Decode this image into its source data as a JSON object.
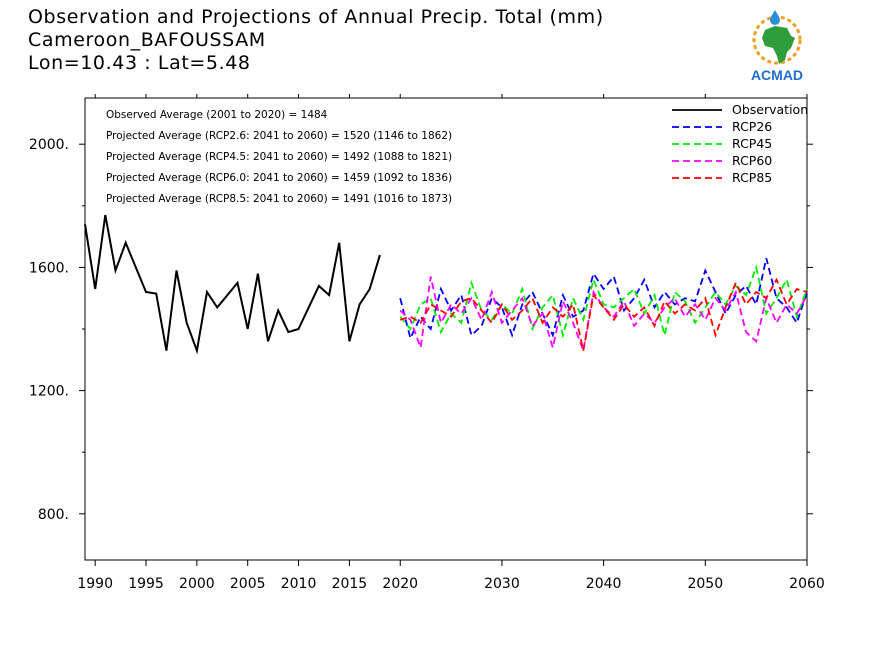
{
  "title": {
    "line1": "Observation and Projections of Annual Precip. Total (mm)",
    "line2": "Cameroon_BAFOUSSAM",
    "line3": "Lon=10.43 : Lat=5.48"
  },
  "logo": {
    "text": "ACMAD",
    "icon": "acmad-africa-logo",
    "colors": {
      "africa": "#2e9e3a",
      "ring": "#f0a020",
      "text": "#1f6fd0",
      "drop": "#2a8fd8"
    }
  },
  "annotations": [
    "Observed Average (2001 to 2020) = 1484",
    "Projected Average (RCP2.6: 2041 to 2060) = 1520 (1146 to 1862)",
    "Projected Average (RCP4.5: 2041 to 2060) = 1492 (1088 to 1821)",
    "Projected Average (RCP6.0: 2041 to 2060) = 1459 (1092 to 1836)",
    "Projected Average (RCP8.5: 2041 to 2060) = 1491 (1016 to 1873)"
  ],
  "chart_data": {
    "type": "line",
    "xlim": [
      1989,
      2060
    ],
    "ylim": [
      650,
      2150
    ],
    "yticks": [
      800,
      1200,
      1600,
      2000
    ],
    "ytick_labels": [
      "800.",
      "1200.",
      "1600.",
      "2000."
    ],
    "xticks": [
      1990,
      1995,
      2000,
      2005,
      2010,
      2015,
      2020,
      2030,
      2040,
      2050,
      2060
    ],
    "xtick_labels": [
      "1990",
      "1995",
      "2000",
      "2005",
      "2010",
      "2015",
      "2020",
      "2030",
      "2040",
      "2050",
      "2060"
    ],
    "legend_position": "top-right",
    "series": [
      {
        "name": "Observation",
        "color": "#000000",
        "dashed": false,
        "x": [
          1989,
          1990,
          1991,
          1992,
          1993,
          1994,
          1995,
          1996,
          1997,
          1998,
          1999,
          2000,
          2001,
          2002,
          2003,
          2004,
          2005,
          2006,
          2007,
          2008,
          2009,
          2010,
          2011,
          2012,
          2013,
          2014,
          2015,
          2016,
          2017,
          2018,
          2019,
          2020
        ],
        "values": [
          1740,
          1530,
          1770,
          1590,
          1680,
          1600,
          1520,
          1515,
          1330,
          1590,
          1420,
          1330,
          1520,
          1470,
          1510,
          1550,
          1400,
          1580,
          1360,
          1460,
          1390,
          1400,
          1470,
          1540,
          1510,
          1680,
          1360,
          1480,
          1530,
          1640,
          null,
          null
        ]
      },
      {
        "name": "RCP26",
        "color": "#0000ff",
        "dashed": true,
        "x": [
          2020,
          2021,
          2022,
          2023,
          2024,
          2025,
          2026,
          2027,
          2028,
          2029,
          2030,
          2031,
          2032,
          2033,
          2034,
          2035,
          2036,
          2037,
          2038,
          2039,
          2040,
          2041,
          2042,
          2043,
          2044,
          2045,
          2046,
          2047,
          2048,
          2049,
          2050,
          2051,
          2052,
          2053,
          2054,
          2055,
          2056,
          2057,
          2058,
          2059,
          2060
        ],
        "values": [
          1500,
          1370,
          1440,
          1400,
          1530,
          1460,
          1510,
          1380,
          1410,
          1500,
          1470,
          1380,
          1480,
          1520,
          1450,
          1380,
          1510,
          1440,
          1460,
          1580,
          1530,
          1570,
          1460,
          1500,
          1560,
          1470,
          1520,
          1480,
          1500,
          1490,
          1590,
          1520,
          1450,
          1510,
          1540,
          1480,
          1630,
          1500,
          1470,
          1420,
          1520
        ]
      },
      {
        "name": "RCP45",
        "color": "#00ee00",
        "dashed": true,
        "x": [
          2020,
          2021,
          2022,
          2023,
          2024,
          2025,
          2026,
          2027,
          2028,
          2029,
          2030,
          2031,
          2032,
          2033,
          2034,
          2035,
          2036,
          2037,
          2038,
          2039,
          2040,
          2041,
          2042,
          2043,
          2044,
          2045,
          2046,
          2047,
          2048,
          2049,
          2050,
          2051,
          2052,
          2053,
          2054,
          2055,
          2056,
          2057,
          2058,
          2059,
          2060
        ],
        "values": [
          1440,
          1400,
          1480,
          1500,
          1390,
          1450,
          1420,
          1550,
          1460,
          1430,
          1480,
          1450,
          1530,
          1400,
          1470,
          1510,
          1380,
          1500,
          1430,
          1560,
          1480,
          1470,
          1500,
          1530,
          1450,
          1510,
          1380,
          1520,
          1490,
          1420,
          1470,
          1520,
          1480,
          1540,
          1510,
          1600,
          1450,
          1500,
          1560,
          1440,
          1530
        ]
      },
      {
        "name": "RCP60",
        "color": "#ff00ff",
        "dashed": true,
        "x": [
          2020,
          2021,
          2022,
          2023,
          2024,
          2025,
          2026,
          2027,
          2028,
          2029,
          2030,
          2031,
          2032,
          2033,
          2034,
          2035,
          2036,
          2037,
          2038,
          2039,
          2040,
          2041,
          2042,
          2043,
          2044,
          2045,
          2046,
          2047,
          2048,
          2049,
          2050,
          2051,
          2052,
          2053,
          2054,
          2055,
          2056,
          2057,
          2058,
          2059,
          2060
        ],
        "values": [
          1460,
          1430,
          1340,
          1570,
          1420,
          1480,
          1450,
          1500,
          1430,
          1520,
          1420,
          1460,
          1500,
          1410,
          1450,
          1340,
          1490,
          1420,
          1330,
          1520,
          1470,
          1440,
          1490,
          1410,
          1450,
          1420,
          1470,
          1500,
          1440,
          1480,
          1430,
          1500,
          1460,
          1520,
          1390,
          1360,
          1500,
          1420,
          1480,
          1450,
          1510
        ]
      },
      {
        "name": "RCP85",
        "color": "#ff0000",
        "dashed": true,
        "x": [
          2020,
          2021,
          2022,
          2023,
          2024,
          2025,
          2026,
          2027,
          2028,
          2029,
          2030,
          2031,
          2032,
          2033,
          2034,
          2035,
          2036,
          2037,
          2038,
          2039,
          2040,
          2041,
          2042,
          2043,
          2044,
          2045,
          2046,
          2047,
          2048,
          2049,
          2050,
          2051,
          2052,
          2053,
          2054,
          2055,
          2056,
          2057,
          2058,
          2059,
          2060
        ],
        "values": [
          1430,
          1440,
          1420,
          1480,
          1460,
          1440,
          1490,
          1500,
          1460,
          1420,
          1480,
          1430,
          1460,
          1500,
          1420,
          1470,
          1440,
          1480,
          1330,
          1510,
          1470,
          1430,
          1480,
          1440,
          1470,
          1410,
          1490,
          1450,
          1480,
          1460,
          1500,
          1380,
          1470,
          1550,
          1480,
          1520,
          1500,
          1560,
          1480,
          1530,
          1520
        ]
      }
    ]
  }
}
